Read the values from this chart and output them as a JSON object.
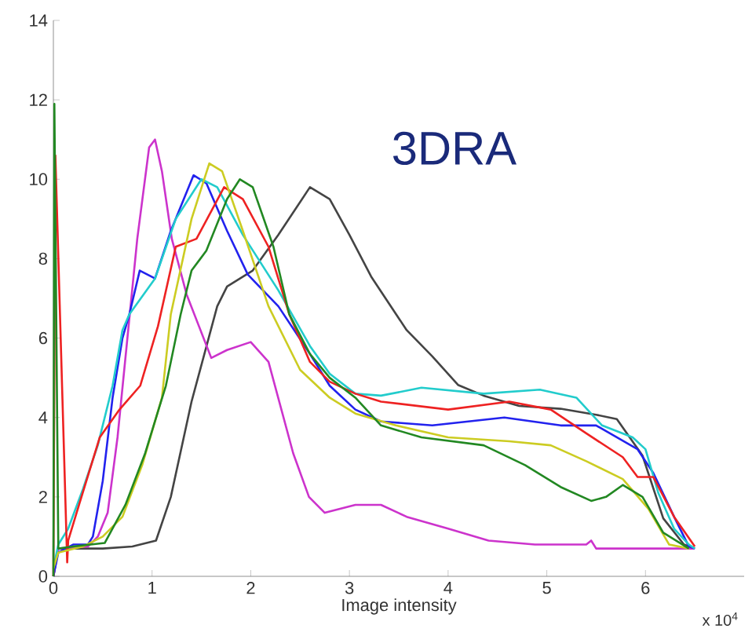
{
  "chart_data": {
    "type": "line",
    "xlabel": "Image intensity",
    "annotations": [
      "3DRA",
      "x 10$^{4}$"
    ],
    "xlim": [
      0,
      7
    ],
    "ylim": [
      0,
      14
    ],
    "xticks": [
      0,
      1,
      2,
      3,
      4,
      5,
      6
    ],
    "yticks": [
      0,
      2,
      4,
      6,
      8,
      10,
      12,
      14
    ],
    "marker": "none",
    "line_style": "solid",
    "series": [
      {
        "color": "#444444",
        "x": [
          0,
          0.05,
          0.5,
          0.8,
          1.04,
          1.19,
          1.4,
          1.66,
          1.76,
          2.02,
          2.28,
          2.6,
          2.8,
          3.0,
          3.22,
          3.58,
          3.84,
          4.1,
          4.36,
          4.72,
          5.14,
          5.5,
          5.71,
          5.97,
          6.18,
          6.39,
          6.5
        ],
        "values": [
          0,
          0.7,
          0.7,
          0.75,
          0.9,
          2.0,
          4.4,
          6.8,
          7.3,
          7.7,
          8.6,
          9.8,
          9.5,
          8.6,
          7.55,
          6.2,
          5.54,
          4.82,
          4.55,
          4.29,
          4.22,
          4.07,
          3.96,
          3.04,
          1.46,
          0.8,
          0.7
        ]
      },
      {
        "color": "#cc33cc",
        "x": [
          0,
          0.05,
          0.35,
          0.45,
          0.55,
          0.65,
          0.75,
          0.85,
          0.97,
          1.03,
          1.1,
          1.2,
          1.35,
          1.6,
          1.76,
          2.0,
          2.18,
          2.43,
          2.59,
          2.75,
          3.06,
          3.32,
          3.58,
          4.0,
          4.41,
          4.88,
          5.4,
          5.45,
          5.5,
          6.4,
          6.5
        ],
        "values": [
          0,
          0.7,
          0.75,
          1.0,
          1.6,
          3.5,
          6.0,
          8.5,
          10.8,
          11.0,
          10.2,
          8.5,
          7.1,
          5.5,
          5.7,
          5.9,
          5.4,
          3.1,
          2.0,
          1.6,
          1.8,
          1.8,
          1.5,
          1.2,
          0.9,
          0.8,
          0.8,
          0.9,
          0.7,
          0.7,
          0.7
        ]
      },
      {
        "color": "#2222ee",
        "x": [
          0,
          0.05,
          0.2,
          0.35,
          0.4,
          0.5,
          0.6,
          0.7,
          0.77,
          0.875,
          1.03,
          1.19,
          1.42,
          1.55,
          1.76,
          1.97,
          2.28,
          2.6,
          2.8,
          3.06,
          3.32,
          3.84,
          4.57,
          5.14,
          5.5,
          5.92,
          6.08,
          6.29,
          6.44,
          6.5
        ],
        "values": [
          0,
          0.6,
          0.8,
          0.8,
          1.0,
          2.4,
          4.5,
          6.0,
          6.6,
          7.7,
          7.5,
          8.7,
          10.1,
          9.9,
          8.7,
          7.6,
          6.8,
          5.6,
          4.8,
          4.2,
          3.9,
          3.8,
          4.0,
          3.8,
          3.8,
          3.2,
          2.6,
          1.5,
          0.75,
          0.7
        ]
      },
      {
        "color": "#22cccc",
        "x": [
          0,
          0.05,
          0.15,
          0.3,
          0.45,
          0.6,
          0.7,
          0.77,
          1.03,
          1.24,
          1.5,
          1.66,
          1.92,
          2.28,
          2.6,
          2.8,
          3.06,
          3.32,
          3.73,
          4.36,
          4.93,
          5.3,
          5.56,
          5.87,
          6.0,
          6.13,
          6.29,
          6.44,
          6.5
        ],
        "values": [
          0.2,
          0.8,
          1.2,
          2.2,
          3.3,
          4.8,
          6.2,
          6.6,
          7.5,
          9.0,
          10.0,
          9.8,
          8.6,
          7.2,
          5.8,
          5.1,
          4.6,
          4.55,
          4.75,
          4.6,
          4.7,
          4.5,
          3.8,
          3.5,
          3.2,
          2.1,
          1.2,
          0.8,
          0.7
        ]
      },
      {
        "color": "#ee2222",
        "x": [
          0,
          0.02,
          0.14,
          0.15,
          0.26,
          0.47,
          0.67,
          0.88,
          1.06,
          1.24,
          1.45,
          1.73,
          1.92,
          2.18,
          2.39,
          2.6,
          2.8,
          3.06,
          3.32,
          4.0,
          4.62,
          5.04,
          5.4,
          5.77,
          5.92,
          6.08,
          6.29,
          6.5
        ],
        "values": [
          0,
          10.6,
          0.35,
          0.9,
          1.8,
          3.5,
          4.2,
          4.8,
          6.3,
          8.3,
          8.5,
          9.8,
          9.5,
          8.3,
          6.6,
          5.4,
          4.9,
          4.6,
          4.4,
          4.2,
          4.4,
          4.2,
          3.6,
          3.0,
          2.5,
          2.5,
          1.5,
          0.75
        ]
      },
      {
        "color": "#cccc22",
        "x": [
          0,
          0.05,
          0.3,
          0.5,
          0.7,
          0.9,
          1.1,
          1.19,
          1.4,
          1.58,
          1.71,
          1.92,
          2.18,
          2.5,
          2.8,
          3.06,
          3.47,
          4.0,
          4.62,
          5.04,
          5.4,
          5.77,
          6.03,
          6.24,
          6.44
        ],
        "values": [
          0.2,
          0.6,
          0.75,
          1.0,
          1.5,
          2.8,
          4.5,
          6.6,
          9.0,
          10.4,
          10.2,
          8.7,
          6.8,
          5.2,
          4.5,
          4.1,
          3.8,
          3.5,
          3.4,
          3.3,
          2.9,
          2.45,
          1.7,
          0.8,
          0.7
        ]
      },
      {
        "color": "#228822",
        "x": [
          0,
          0.01,
          0.05,
          0.2,
          0.52,
          0.73,
          0.93,
          1.14,
          1.29,
          1.4,
          1.55,
          1.76,
          1.89,
          2.02,
          2.23,
          2.39,
          2.6,
          2.8,
          3.06,
          3.32,
          3.73,
          4.36,
          4.78,
          5.14,
          5.45,
          5.6,
          5.77,
          5.97,
          6.18,
          6.44
        ],
        "values": [
          0,
          11.9,
          0.7,
          0.75,
          0.84,
          1.8,
          3.1,
          4.8,
          6.6,
          7.7,
          8.2,
          9.5,
          10.0,
          9.8,
          8.3,
          6.6,
          5.6,
          5.0,
          4.5,
          3.8,
          3.5,
          3.3,
          2.8,
          2.25,
          1.9,
          2.0,
          2.3,
          2.0,
          1.1,
          0.7
        ]
      }
    ]
  }
}
